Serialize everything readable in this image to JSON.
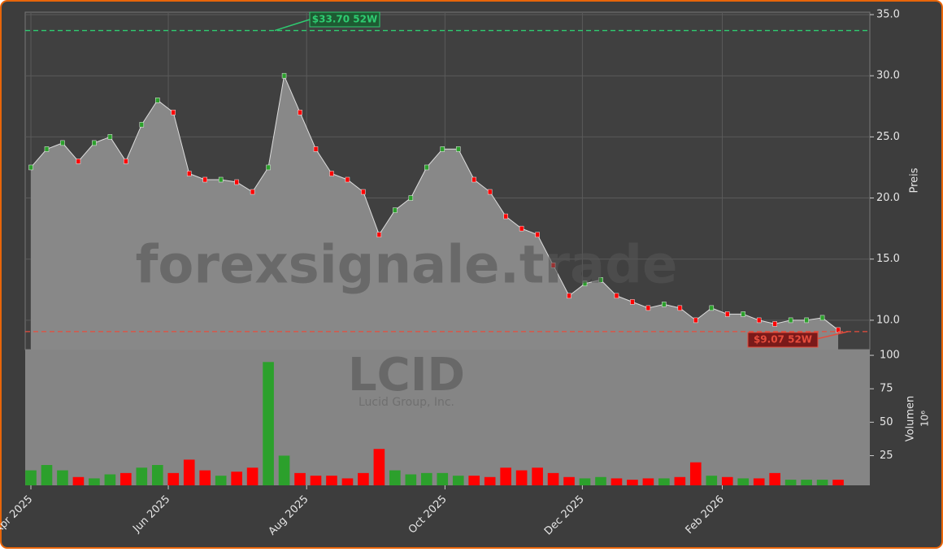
{
  "chart_data": {
    "type": "stock",
    "watermark": "forexsignale.trade",
    "symbol": "LCID",
    "company": "Lucid Group, Inc.",
    "xticks": [
      {
        "value": 0,
        "label": "Apr 2025"
      },
      {
        "value": 8.68,
        "label": "Jun 2025"
      },
      {
        "value": 17.42,
        "label": "Aug 2025"
      },
      {
        "value": 26.16,
        "label": "Oct 2025"
      },
      {
        "value": 34.84,
        "label": "Dec 2025"
      },
      {
        "value": 43.68,
        "label": "Feb 2026"
      }
    ],
    "xlim": [
      -0.36,
      53.0
    ],
    "price": {
      "ylabel": "Preis",
      "ylim": [
        7.6,
        35.2
      ],
      "yticks": [
        {
          "value": 10,
          "label": "10.0"
        },
        {
          "value": 15,
          "label": "15.0"
        },
        {
          "value": 20,
          "label": "20.0"
        },
        {
          "value": 25,
          "label": "25.0"
        },
        {
          "value": 30,
          "label": "30.0"
        },
        {
          "value": 35,
          "label": "35.0"
        }
      ],
      "values": [
        22.5,
        24,
        24.5,
        23,
        24.5,
        25,
        23,
        26,
        28,
        27,
        22,
        21.5,
        21.5,
        21.3,
        20.5,
        22.5,
        30,
        27,
        24,
        22,
        21.5,
        20.5,
        17,
        19,
        20,
        22.5,
        24,
        24,
        21.5,
        20.5,
        18.5,
        17.5,
        17,
        14.5,
        12,
        13,
        13.3,
        12,
        11.5,
        11,
        11.3,
        11,
        10,
        11,
        10.5,
        10.5,
        10,
        9.7,
        10,
        10,
        10.2,
        9.2
      ],
      "up_color": "#2ca02c",
      "down_color": "#ff0000",
      "area_color": "#888888"
    },
    "volume": {
      "ylabel": "Volumen",
      "unit": "10⁶",
      "ylim": [
        2.8,
        104.3
      ],
      "yticks": [
        25,
        50,
        75,
        100
      ],
      "values": [
        14,
        18,
        14,
        9,
        8,
        11,
        12,
        16,
        18,
        12,
        22,
        14,
        10,
        13,
        16,
        95,
        25,
        12,
        10,
        10,
        8,
        12,
        30,
        14,
        11,
        12,
        12,
        10,
        10,
        9,
        16,
        14,
        16,
        12,
        9,
        8,
        9,
        8,
        7,
        8,
        8,
        9,
        20,
        10,
        9,
        8,
        8,
        12,
        7,
        7,
        7,
        7
      ]
    },
    "annotations": [
      {
        "text": "$33.70 52W",
        "value": 33.7,
        "color": "#2ecc71"
      },
      {
        "text": "$9.07 52W",
        "value": 9.07,
        "color": "#e74c3c"
      }
    ]
  }
}
